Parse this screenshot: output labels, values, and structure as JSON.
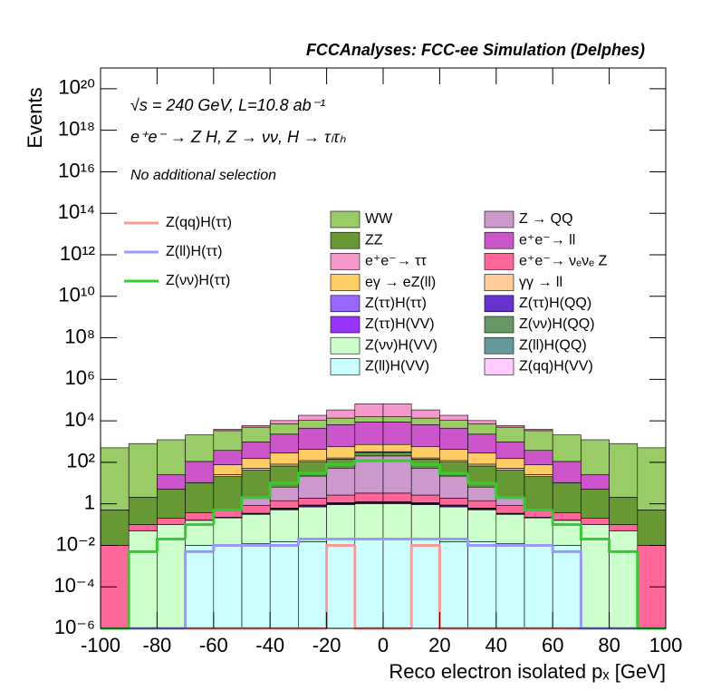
{
  "chart_data": {
    "type": "histogram",
    "title": "FCCAnalyses: FCC-ee Simulation (Delphes)",
    "annotations": [
      "√s = 240 GeV, L=10.8 ab⁻¹",
      "e⁺e⁻ → Z H, Z → νν, H → τₗτₕ",
      "No additional selection"
    ],
    "x_label": "Reco electron isolated pₓ [GeV]",
    "y_label": "Events",
    "log_y": true,
    "stacked": true,
    "bins": [
      -100,
      -90,
      -80,
      -70,
      -60,
      -50,
      -40,
      -30,
      -20,
      -10,
      0,
      10,
      20,
      30,
      40,
      50,
      60,
      70,
      80,
      90,
      100
    ],
    "xlim": [
      -100,
      100
    ],
    "xticks": [
      -100,
      -80,
      -60,
      -40,
      -20,
      0,
      20,
      40,
      60,
      80,
      100
    ],
    "ylim": [
      1e-06,
      1e+21
    ],
    "yticks": [
      {
        "value": 1e-06,
        "label": "10⁻⁶"
      },
      {
        "value": 0.0001,
        "label": "10⁻⁴"
      },
      {
        "value": 0.01,
        "label": "10⁻²"
      },
      1,
      {
        "value": 100.0,
        "label": "10²"
      },
      {
        "value": 10000.0,
        "label": "10⁴"
      },
      {
        "value": 1000000.0,
        "label": "10⁶"
      },
      {
        "value": 100000000.0,
        "label": "10⁸"
      },
      {
        "value": 10000000000.0,
        "label": "10¹⁰"
      },
      {
        "value": 1000000000000.0,
        "label": "10¹²"
      },
      {
        "value": 100000000000000.0,
        "label": "10¹⁴"
      },
      {
        "value": 1e+16,
        "label": "10¹⁶"
      },
      {
        "value": 1e+18,
        "label": "10¹⁸"
      },
      {
        "value": 1e+20,
        "label": "10²⁰"
      }
    ],
    "series": [
      {
        "name": "Z(ll)H(VV)",
        "color": "#ccffff",
        "values": [
          0,
          0,
          0,
          0.01,
          0.01,
          0.012,
          0.015,
          0.015,
          0.02,
          0.02,
          0.02,
          0.02,
          0.015,
          0.015,
          0.012,
          0.01,
          0.01,
          0,
          0,
          0
        ]
      },
      {
        "name": "Z(νν)H(VV)",
        "color": "#ccffcc",
        "values": [
          0,
          0.05,
          0.1,
          0.15,
          0.2,
          0.3,
          0.5,
          0.7,
          0.9,
          1,
          1,
          0.9,
          0.7,
          0.5,
          0.3,
          0.2,
          0.15,
          0.1,
          0.05,
          0
        ]
      },
      {
        "name": "Z(ττ)H(VV)",
        "color": "#9933ff",
        "values": [
          0,
          0,
          0,
          0.005,
          0.01,
          0.02,
          0.05,
          0.08,
          0.1,
          0.12,
          0.12,
          0.1,
          0.08,
          0.05,
          0.02,
          0.01,
          0.005,
          0,
          0,
          0
        ]
      },
      {
        "name": "Z(ττ)H(ττ)",
        "color": "#9966ff",
        "values": [
          0,
          0,
          0,
          0,
          0.005,
          0.01,
          0.02,
          0.03,
          0.04,
          0.05,
          0.05,
          0.04,
          0.03,
          0.02,
          0.01,
          0.005,
          0,
          0,
          0,
          0
        ]
      },
      {
        "name": "Z(ττ)H(QQ)",
        "color": "#6633cc",
        "values": [
          0,
          0,
          0,
          0,
          0,
          0.01,
          0.02,
          0.03,
          0.04,
          0.05,
          0.05,
          0.04,
          0.03,
          0.02,
          0.01,
          0,
          0,
          0,
          0,
          0
        ]
      },
      {
        "name": "Z(νν)H(QQ)",
        "color": "#669966",
        "values": [
          0,
          0,
          0,
          0,
          0,
          0,
          0.01,
          0.01,
          0.02,
          0.02,
          0.02,
          0.02,
          0.01,
          0.01,
          0,
          0,
          0,
          0,
          0,
          0
        ]
      },
      {
        "name": "Z(ll)H(QQ)",
        "color": "#669999",
        "values": [
          0,
          0,
          0,
          0,
          0,
          0,
          0,
          0.005,
          0.01,
          0.01,
          0.01,
          0.01,
          0.005,
          0,
          0,
          0,
          0,
          0,
          0,
          0
        ]
      },
      {
        "name": "Z(qq)H(VV)",
        "color": "#ffccff",
        "values": [
          0,
          0,
          0,
          0,
          0,
          0,
          0.005,
          0.005,
          0.01,
          0.01,
          0.01,
          0.01,
          0.005,
          0.005,
          0,
          0,
          0,
          0,
          0,
          0
        ]
      },
      {
        "name": "e⁺e⁻→ νₑνₑ Z",
        "color": "#ff6699",
        "values": [
          0.01,
          0.05,
          0.1,
          0.2,
          0.3,
          0.5,
          0.8,
          1,
          1.5,
          2,
          2,
          1.5,
          1,
          0.8,
          0.5,
          0.3,
          0.2,
          0.1,
          0.05,
          0.01
        ]
      },
      {
        "name": "Z → QQ",
        "color": "#cc99cc",
        "values": [
          0,
          0,
          0,
          0,
          0,
          1,
          5,
          20,
          50,
          200,
          200,
          50,
          20,
          5,
          1,
          0,
          0,
          0,
          0,
          0
        ]
      },
      {
        "name": "ZZ",
        "color": "#669933",
        "values": [
          0.5,
          2,
          5,
          10,
          20,
          40,
          60,
          80,
          90,
          100,
          100,
          90,
          80,
          60,
          40,
          20,
          10,
          5,
          2,
          0.5
        ]
      },
      {
        "name": "γγ → ll",
        "color": "#ffcc99",
        "values": [
          0,
          0,
          0,
          0,
          5,
          10,
          15,
          20,
          20,
          20,
          20,
          20,
          20,
          15,
          10,
          5,
          0,
          0,
          0,
          0
        ]
      },
      {
        "name": "eγ → eZ(ll)",
        "color": "#ffcc66",
        "values": [
          0,
          0,
          0,
          0,
          50,
          100,
          200,
          300,
          400,
          400,
          400,
          400,
          300,
          200,
          100,
          50,
          0,
          0,
          0,
          0
        ]
      },
      {
        "name": "e⁺e⁻→ ll",
        "color": "#cc55cc",
        "values": [
          0,
          0,
          20,
          100,
          300,
          800,
          2000,
          4000,
          6000,
          8000,
          8000,
          6000,
          4000,
          2000,
          800,
          300,
          100,
          20,
          0,
          0
        ]
      },
      {
        "name": "WW",
        "color": "#99cc66",
        "values": [
          500,
          800,
          1200,
          2000,
          3000,
          4000,
          5000,
          6000,
          7000,
          7000,
          7000,
          7000,
          6000,
          5000,
          4000,
          3000,
          2000,
          1200,
          800,
          500
        ]
      },
      {
        "name": "e⁺e⁻→ ττ",
        "color": "#f599cc",
        "values": [
          0,
          0,
          0,
          0,
          500,
          1000,
          3000,
          8000,
          20000,
          50000,
          50000,
          20000,
          8000,
          3000,
          1000,
          500,
          0,
          0,
          0,
          0
        ]
      }
    ],
    "lines": [
      {
        "name": "Z(qq)H(ττ)",
        "color": "#ff9999",
        "values": [
          0,
          0,
          0,
          0,
          0,
          0,
          0,
          0,
          0.01,
          0,
          0,
          0.01,
          0,
          0,
          0,
          0,
          0,
          0,
          0,
          0
        ]
      },
      {
        "name": "Z(ll)H(ττ)",
        "color": "#9999ff",
        "values": [
          0,
          0,
          0,
          0.005,
          0.01,
          0.01,
          0.01,
          0.02,
          0.02,
          0.02,
          0.02,
          0.02,
          0.02,
          0.01,
          0.01,
          0.01,
          0.005,
          0,
          0,
          0
        ]
      },
      {
        "name": "Z(νν)H(ττ)",
        "color": "#33cc33",
        "values": [
          0,
          0.005,
          0.02,
          0.1,
          0.5,
          2,
          10,
          30,
          80,
          120,
          120,
          80,
          30,
          10,
          2,
          0.5,
          0.1,
          0.02,
          0.005,
          0
        ]
      }
    ]
  }
}
